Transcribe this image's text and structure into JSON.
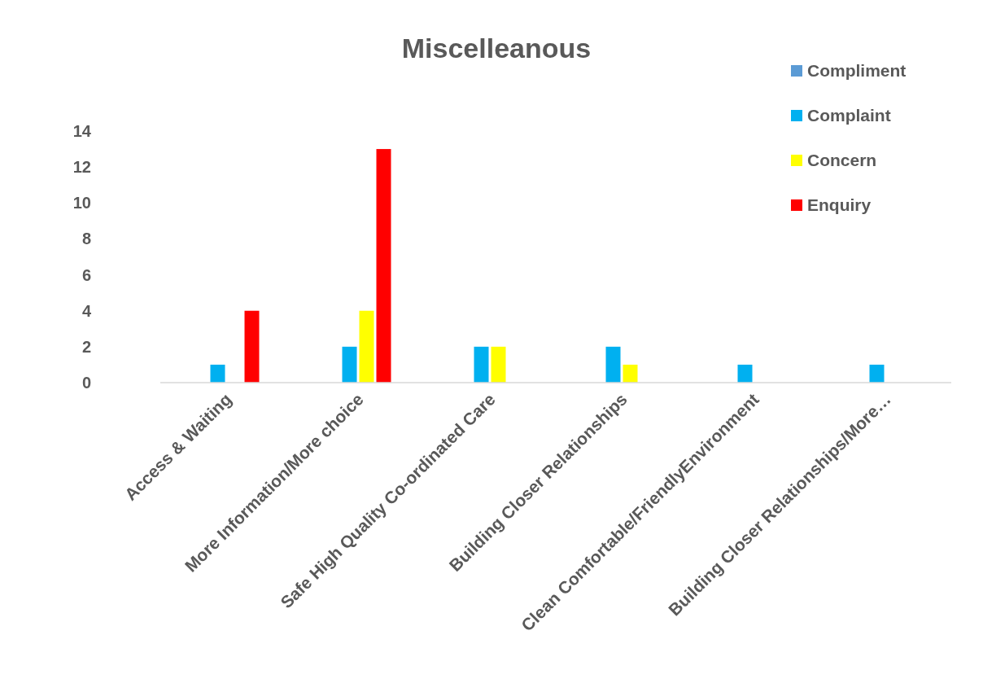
{
  "chart_data": {
    "type": "bar",
    "title": "Miscelleanous",
    "categories": [
      "Access & Waiting",
      "More Information/More choice",
      "Safe High Quality Co-ordinated Care",
      "Building Closer Relationships",
      "Clean Comfortable/FriendlyEnvironment",
      "Building Closer Relationships/More…"
    ],
    "series": [
      {
        "name": "Compliment",
        "color": "#5b9bd5",
        "values": [
          null,
          null,
          null,
          null,
          null,
          null
        ]
      },
      {
        "name": "Complaint",
        "color": "#00b0f0",
        "values": [
          1,
          2,
          2,
          2,
          1,
          1
        ]
      },
      {
        "name": "Concern",
        "color": "#ffff00",
        "values": [
          null,
          4,
          2,
          1,
          null,
          null
        ]
      },
      {
        "name": "Enquiry",
        "color": "#ff0000",
        "values": [
          4,
          13,
          null,
          null,
          null,
          null
        ]
      }
    ],
    "ylim": [
      0,
      14
    ],
    "yticks": [
      0,
      2,
      4,
      6,
      8,
      10,
      12,
      14
    ],
    "grid": false,
    "legend": "top right"
  }
}
